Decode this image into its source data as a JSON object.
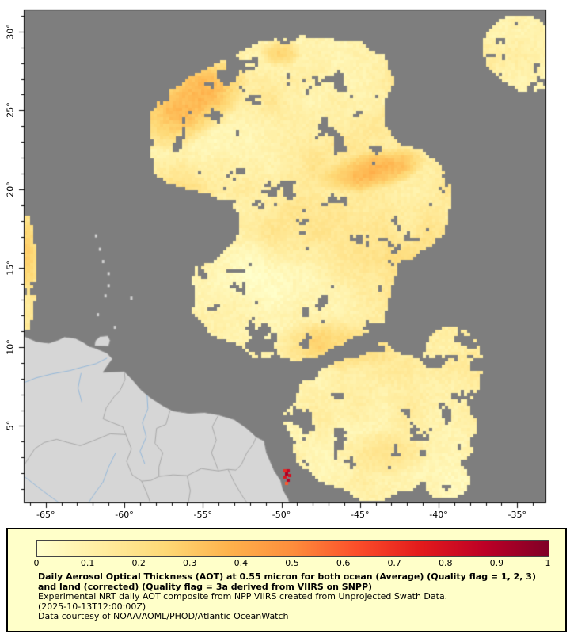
{
  "map": {
    "ocean_color": "#7e7e7e",
    "land_color": "#d6d6d6",
    "lat_ticks": [
      {
        "label": "30°",
        "value": 30
      },
      {
        "label": "25°",
        "value": 25
      },
      {
        "label": "20°",
        "value": 20
      },
      {
        "label": "15°",
        "value": 15
      },
      {
        "label": "10°",
        "value": 10
      },
      {
        "label": "5°",
        "value": 5
      }
    ],
    "lon_ticks": [
      {
        "label": "-65°",
        "value": -65
      },
      {
        "label": "-60°",
        "value": -60
      },
      {
        "label": "-55°",
        "value": -55
      },
      {
        "label": "-50°",
        "value": -50
      },
      {
        "label": "-45°",
        "value": -45
      },
      {
        "label": "-40°",
        "value": -40
      },
      {
        "label": "-35°",
        "value": -35
      }
    ]
  },
  "colorbar": {
    "min": 0,
    "max": 1,
    "tick_labels": [
      "0",
      "0.1",
      "0.2",
      "0.3",
      "0.4",
      "0.5",
      "0.6",
      "0.7",
      "0.8",
      "0.9",
      "1"
    ],
    "colors": [
      "#ffffcc",
      "#ffeda0",
      "#fed976",
      "#feb24c",
      "#fd8d3c",
      "#fc4e2a",
      "#e31a1c",
      "#bd0026",
      "#800026"
    ]
  },
  "caption": {
    "title": "Daily Aerosol Optical Thickness (AOT) at 0.55 micron for both ocean (Average) (Quality flag = 1, 2, 3) and land (corrected) (Quality flag = 3a derived from VIIRS on SNPP)",
    "source_line": "Experimental NRT daily AOT composite from NPP VIIRS created from Unprojected Swath Data.",
    "timestamp": "(2025-10-13T12:00:00Z)",
    "courtesy": "Data courtesy of NOAA/AOML/PHOD/Atlantic OceanWatch"
  }
}
